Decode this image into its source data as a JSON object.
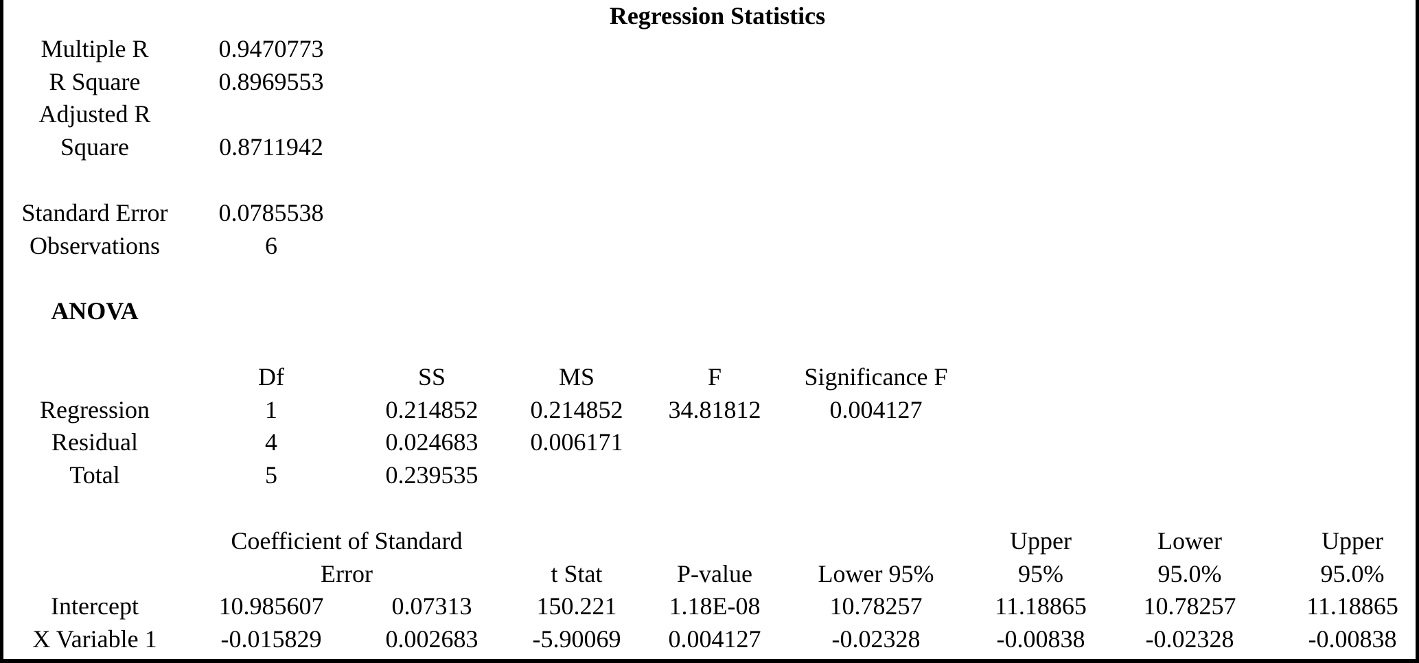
{
  "title": "Regression Statistics",
  "regression_statistics": {
    "rows": [
      [
        "Multiple R",
        "0.9470773"
      ],
      [
        "R Square",
        "0.8969553"
      ],
      [
        "Adjusted R Square",
        "0.8711942"
      ],
      [
        "Standard Error",
        "0.0785538"
      ],
      [
        "Observations",
        "6"
      ]
    ]
  },
  "anova": {
    "title": "ANOVA",
    "header": [
      "Df",
      "SS",
      "MS",
      "F",
      "Significance F"
    ],
    "rows": [
      [
        "Regression",
        "1",
        "0.214852",
        "0.214852",
        "34.81812",
        "0.004127"
      ],
      [
        "Residual",
        "4",
        "0.024683",
        "0.006171"
      ],
      [
        "Total",
        "5",
        "0.239535"
      ]
    ]
  },
  "coefficients": {
    "header": [
      "Coefficient of Standard Error",
      "t Stat",
      "P-value",
      "Lower 95%",
      "Upper 95%",
      "Lower 95.0%",
      "Upper 95.0%"
    ],
    "rows": [
      [
        "Intercept",
        "10.985607",
        "0.07313",
        "150.221",
        "1.18E-08",
        "10.78257",
        "11.18865",
        "10.78257",
        "11.18865"
      ],
      [
        "X Variable 1",
        "-0.015829",
        "0.002683",
        "-5.90069",
        "0.004127",
        "-0.02328",
        "-0.00838",
        "-0.02328",
        "-0.00838"
      ]
    ]
  }
}
